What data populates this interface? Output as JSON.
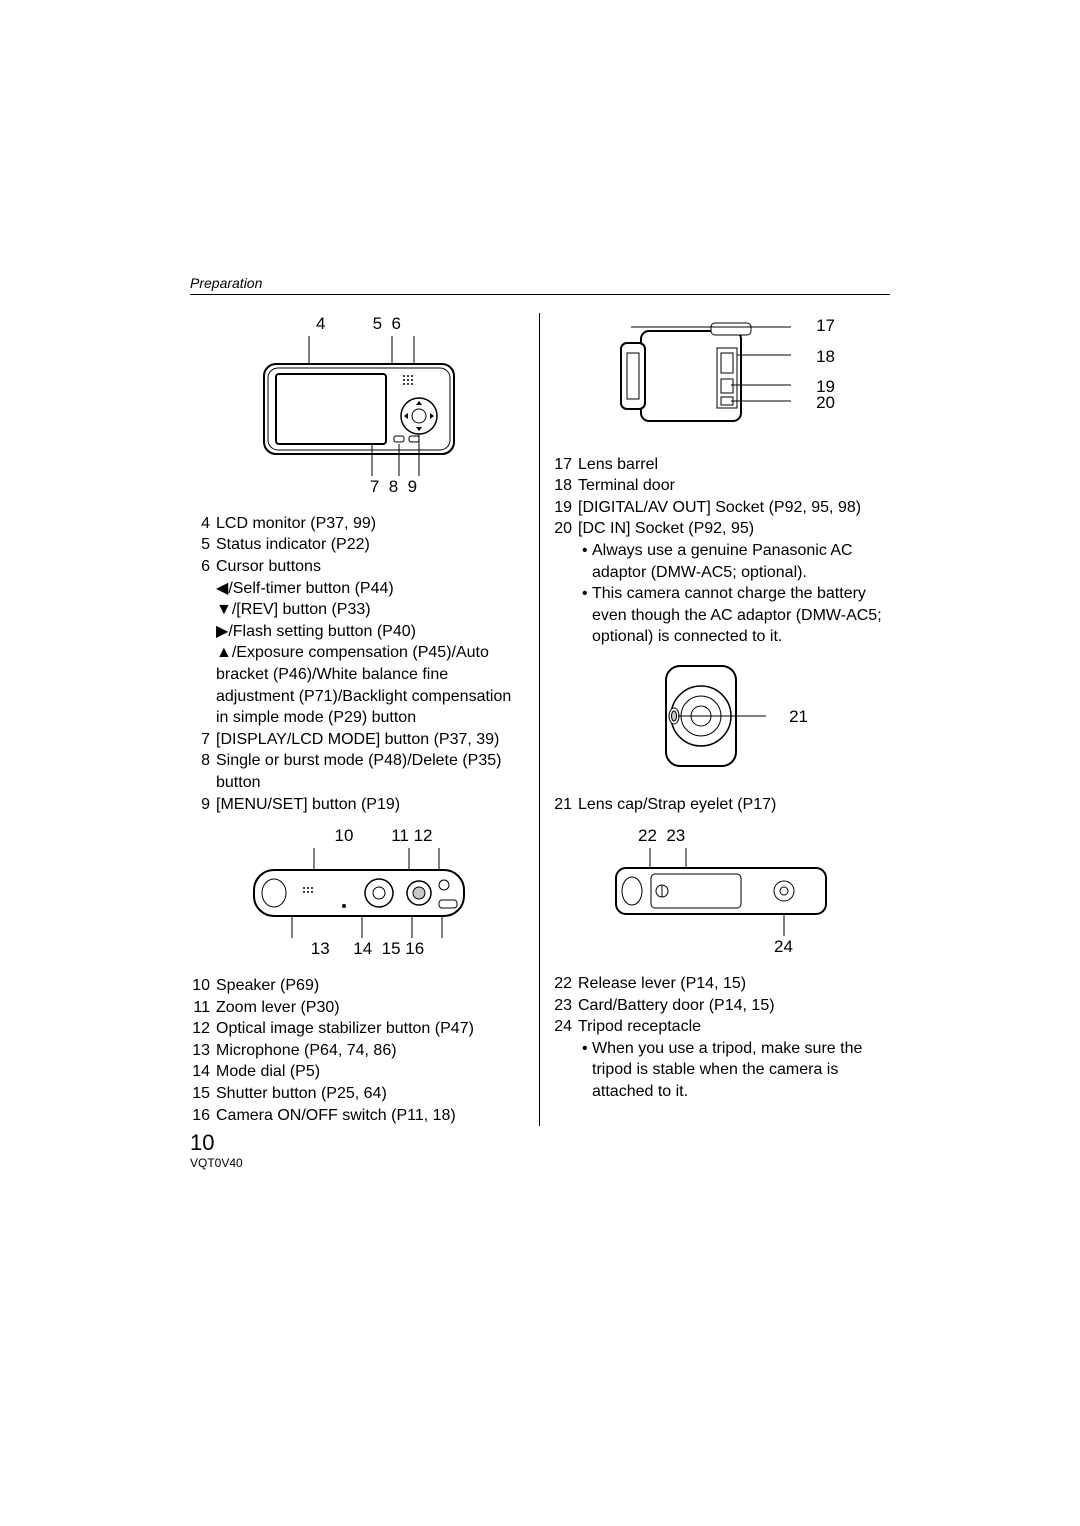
{
  "header": "Preparation",
  "pageNumber": "10",
  "docCode": "VQT0V40",
  "colors": {
    "text": "#000000",
    "bg": "#ffffff",
    "diagram_fill": "#ffffff",
    "diagram_stroke": "#000000",
    "shade": "#c8c8c8"
  },
  "leftCol": {
    "diag1": {
      "topLabels": "4          5  6",
      "bottomLabels": "7  8  9"
    },
    "items1": [
      {
        "n": "4",
        "t": "LCD monitor (P37, 99)"
      },
      {
        "n": "5",
        "t": "Status indicator (P22)"
      },
      {
        "n": "6",
        "t": "Cursor buttons"
      }
    ],
    "cursorSubs": [
      {
        "arrow": "◀",
        "t": "/Self-timer button (P44)"
      },
      {
        "arrow": "▼",
        "t": "/[REV] button (P33)"
      },
      {
        "arrow": "▶",
        "t": "/Flash setting button (P40)"
      },
      {
        "arrow": "▲",
        "t": "/Exposure compensation (P45)/Auto bracket (P46)/White balance fine adjustment (P71)/Backlight compensation in simple mode (P29) button"
      }
    ],
    "items1b": [
      {
        "n": "7",
        "t": "[DISPLAY/LCD MODE] button (P37, 39)"
      },
      {
        "n": "8",
        "t": "Single or burst mode (P48)/Delete (P35) button"
      },
      {
        "n": "9",
        "t": "[MENU/SET] button (P19)"
      }
    ],
    "diag2": {
      "topLabels": "10        11 12",
      "bottomLabels": "13     14  15 16"
    },
    "items2": [
      {
        "n": "10",
        "t": "Speaker (P69)"
      },
      {
        "n": "11",
        "t": "Zoom lever (P30)"
      },
      {
        "n": "12",
        "t": "Optical image stabilizer button (P47)"
      },
      {
        "n": "13",
        "t": "Microphone (P64, 74, 86)"
      },
      {
        "n": "14",
        "t": "Mode dial (P5)"
      },
      {
        "n": "15",
        "t": "Shutter button (P25, 64)"
      },
      {
        "n": "16",
        "t": "Camera ON/OFF switch (P11, 18)"
      }
    ]
  },
  "rightCol": {
    "diag3": {
      "sideLabels": [
        "17",
        "18",
        "19",
        "20"
      ]
    },
    "items3": [
      {
        "n": "17",
        "t": "Lens barrel"
      },
      {
        "n": "18",
        "t": "Terminal door"
      },
      {
        "n": "19",
        "t": "[DIGITAL/AV OUT] Socket (P92, 95, 98)"
      },
      {
        "n": "20",
        "t": "[DC IN] Socket (P92, 95)"
      }
    ],
    "bullets3": [
      "Always use a genuine Panasonic AC adaptor (DMW-AC5; optional).",
      "This camera cannot charge the battery even though the AC adaptor (DMW-AC5; optional) is connected to it."
    ],
    "diag4": {
      "sideLabel": "21"
    },
    "items4": [
      {
        "n": "21",
        "t": "Lens cap/Strap eyelet (P17)"
      }
    ],
    "diag5": {
      "topLabels": "22  23",
      "bottomLabel": "24"
    },
    "items5": [
      {
        "n": "22",
        "t": "Release lever (P14, 15)"
      },
      {
        "n": "23",
        "t": "Card/Battery door (P14, 15)"
      },
      {
        "n": "24",
        "t": "Tripod receptacle"
      }
    ],
    "bullets5": [
      "When you use a tripod, make sure the tripod is stable when the camera is attached to it."
    ]
  }
}
